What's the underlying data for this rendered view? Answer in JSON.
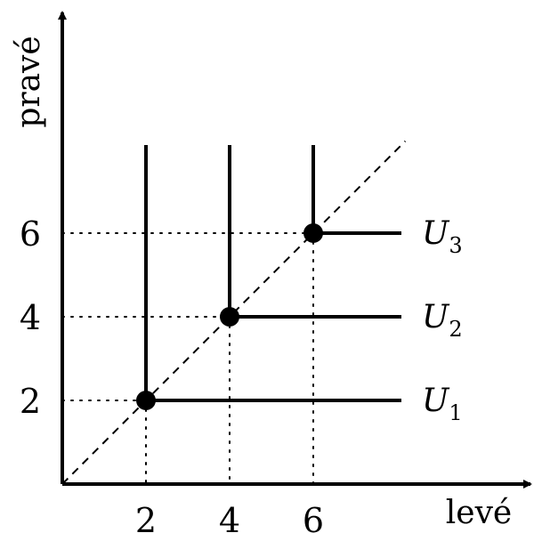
{
  "axes": {
    "x_title": "levé",
    "y_title": "pravé",
    "x_ticks": [
      "2",
      "4",
      "6"
    ],
    "y_ticks": [
      "2",
      "4",
      "6"
    ]
  },
  "chart_data": {
    "type": "line",
    "xlabel": "levé",
    "ylabel": "pravé",
    "kinks": [
      {
        "name": "U1",
        "x": 2,
        "y": 2
      },
      {
        "name": "U2",
        "x": 4,
        "y": 4
      },
      {
        "name": "U3",
        "x": 6,
        "y": 6
      }
    ],
    "diagonal": "y = x"
  },
  "curves": [
    {
      "base": "U",
      "sub": "1"
    },
    {
      "base": "U",
      "sub": "2"
    },
    {
      "base": "U",
      "sub": "3"
    }
  ],
  "colors": {
    "ink": "#000000",
    "background": "#ffffff"
  }
}
